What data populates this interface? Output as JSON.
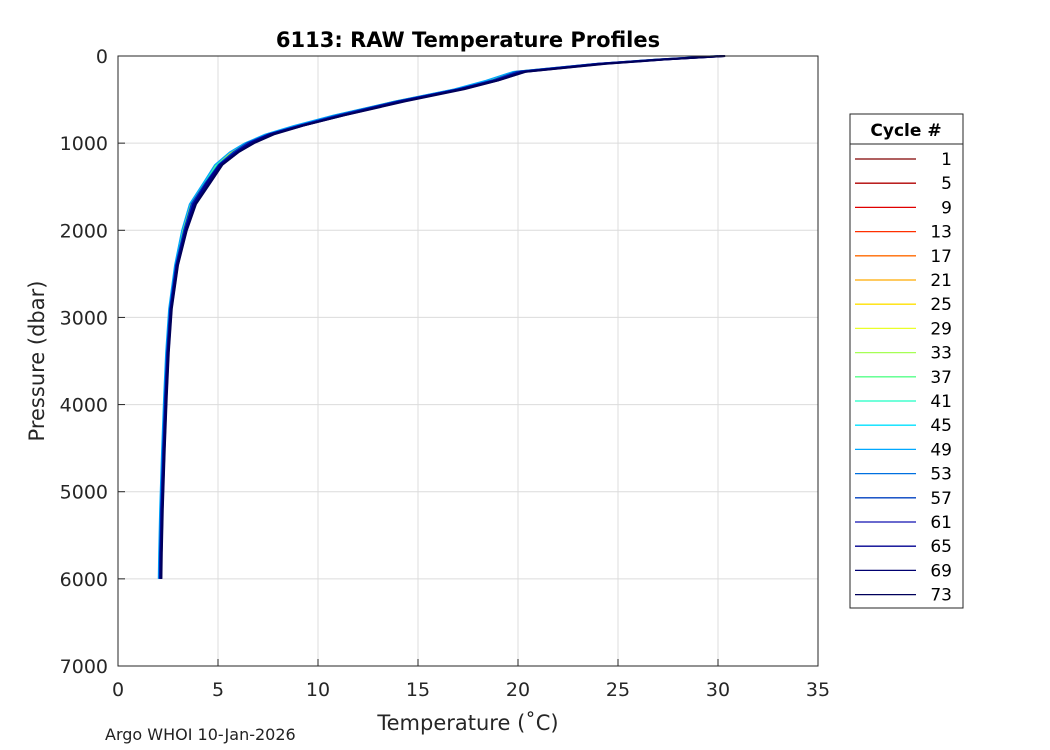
{
  "chart_data": {
    "type": "line",
    "title": "6113: RAW Temperature Profiles",
    "xlabel": "Temperature (˚C)",
    "ylabel": "Pressure (dbar)",
    "xlim": [
      0,
      35
    ],
    "ylim": [
      0,
      7000
    ],
    "y_reversed": true,
    "grid": true,
    "xticks": [
      0,
      5,
      10,
      15,
      20,
      25,
      30,
      35
    ],
    "yticks": [
      0,
      1000,
      2000,
      3000,
      4000,
      5000,
      6000,
      7000
    ],
    "legend": {
      "title": "Cycle #",
      "placement": "right-outside"
    },
    "base_profile": {
      "temperature": [
        30.0,
        27.0,
        24.0,
        20.0,
        18.7,
        17.0,
        14.0,
        11.0,
        9.0,
        7.5,
        6.5,
        5.8,
        5.0,
        4.4,
        3.7,
        3.3,
        2.9,
        2.6,
        2.45,
        2.35,
        2.25,
        2.15,
        2.1,
        2.08
      ],
      "pressure": [
        0,
        40,
        90,
        180,
        280,
        380,
        520,
        680,
        800,
        900,
        1000,
        1100,
        1250,
        1450,
        1700,
        2000,
        2400,
        2900,
        3400,
        3900,
        4500,
        5200,
        5700,
        6000
      ]
    },
    "series": [
      {
        "name": "1",
        "color": "#800000",
        "offset": 0.05
      },
      {
        "name": "5",
        "color": "#b00000",
        "offset": -0.05
      },
      {
        "name": "9",
        "color": "#e00000",
        "offset": 0.1
      },
      {
        "name": "13",
        "color": "#ff3000",
        "offset": -0.1
      },
      {
        "name": "17",
        "color": "#ff6a00",
        "offset": 0.15
      },
      {
        "name": "21",
        "color": "#ffaa00",
        "offset": 0.0
      },
      {
        "name": "25",
        "color": "#ffe000",
        "offset": -0.15
      },
      {
        "name": "29",
        "color": "#eaff2a",
        "offset": 0.2
      },
      {
        "name": "33",
        "color": "#a6ff55",
        "offset": -0.1
      },
      {
        "name": "37",
        "color": "#55ff88",
        "offset": 0.1
      },
      {
        "name": "41",
        "color": "#1cffc4",
        "offset": -0.05
      },
      {
        "name": "45",
        "color": "#00e0ff",
        "offset": 0.05
      },
      {
        "name": "49",
        "color": "#00a8ff",
        "offset": -0.2
      },
      {
        "name": "53",
        "color": "#0070e0",
        "offset": 0.15
      },
      {
        "name": "57",
        "color": "#0040c0",
        "offset": 0.0
      },
      {
        "name": "61",
        "color": "#1010b0",
        "offset": 0.2
      },
      {
        "name": "65",
        "color": "#000090",
        "offset": 0.1
      },
      {
        "name": "69",
        "color": "#000070",
        "offset": 0.25
      },
      {
        "name": "73",
        "color": "#00005a",
        "offset": 0.3
      }
    ]
  },
  "footer": {
    "text": "Argo WHOI 10-Jan-2026"
  }
}
